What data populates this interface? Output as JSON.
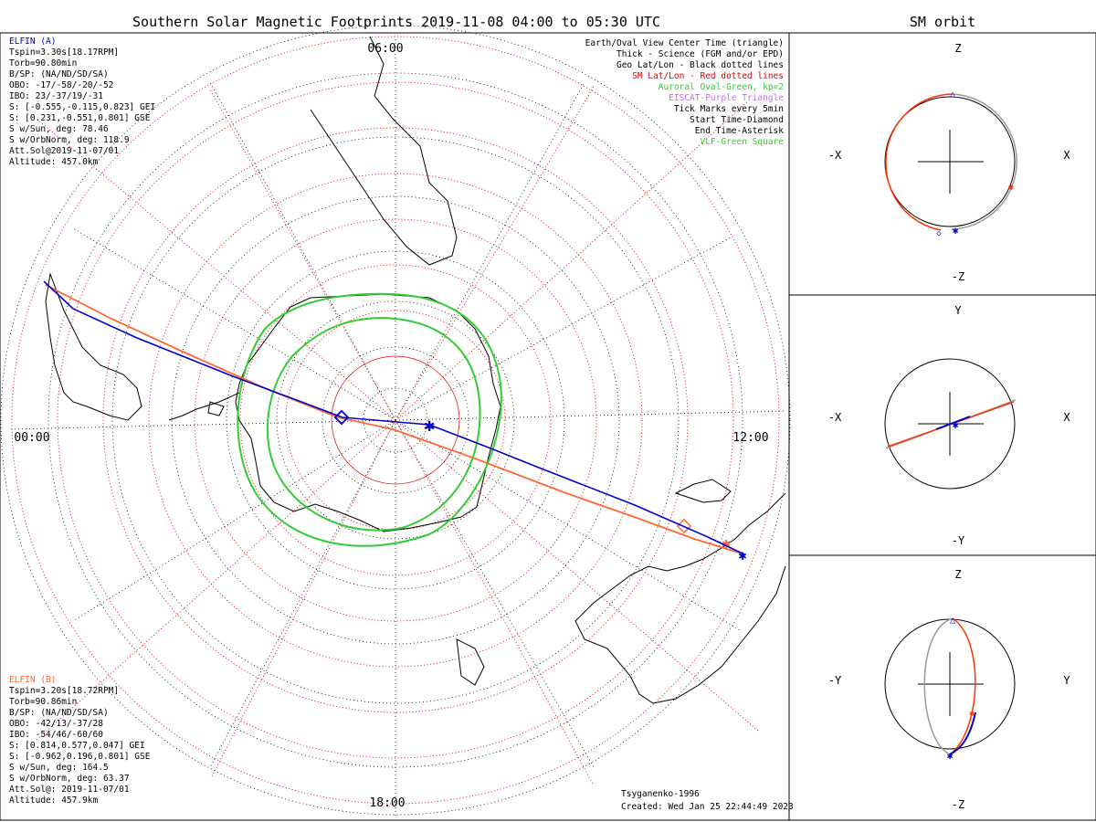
{
  "main_title": "Southern Solar Magnetic Footprints 2019-11-08 04:00 to 05:30 UTC",
  "orbit_title": "SM orbit",
  "hour_labels": {
    "top": "06:00",
    "left": "00:00",
    "right": "12:00",
    "bottom": "18:00"
  },
  "legend": [
    {
      "text": "Earth/Oval View Center Time (triangle)",
      "color": "#000000"
    },
    {
      "text": "Thick - Science (FGM and/or EPD)",
      "color": "#000000"
    },
    {
      "text": "Geo Lat/Lon - Black dotted lines",
      "color": "#000000"
    },
    {
      "text": "SM Lat/Lon - Red dotted lines",
      "color": "#e00000"
    },
    {
      "text": "Auroral Oval-Green, kp=2",
      "color": "#33cc33"
    },
    {
      "text": "EISCAT-Purple Triangle",
      "color": "#cc66ff"
    },
    {
      "text": "Tick Marks every 5min",
      "color": "#000000"
    },
    {
      "text": "Start Time-Diamond",
      "color": "#000000"
    },
    {
      "text": "End Time-Asterisk",
      "color": "#000000"
    },
    {
      "text": "VLF-Green Square",
      "color": "#33cc33"
    }
  ],
  "elfin_a": {
    "name": "ELFIN (A)",
    "color": "#0000cc",
    "lines": [
      "Tspin=3.30s[18.17RPM]",
      "Torb=90.80min",
      "B/SP: (NA/ND/SD/SA)",
      "OBO: -17/-58/-20/-52",
      "IBO: 23/-37/19/-31",
      "S: [-0.555,-0.115,0.823] GEI",
      "S: [0.231,-0.551,0.801] GSE",
      "S w/Sun, deg: 78.46",
      "S w/OrbNorm, deg: 118.9",
      "Att.Sol@2019-11-07/01",
      "Altitude: 457.0km"
    ]
  },
  "elfin_b": {
    "name": "ELFIN (B)",
    "color": "#ff6633",
    "lines": [
      "Tspin=3.20s[18.72RPM]",
      "Torb=90.86min",
      "B/SP: (NA/ND/SD/SA)",
      "OBO: -42/13/-37/28",
      "IBO: -54/46/-60/60",
      "S: [0.814,0.577,0.047] GEI",
      "S: [-0.962,0.196,0.801] GSE",
      "S w/Sun, deg: 164.5",
      "S w/OrbNorm, deg: 63.37",
      "Att.Sol@: 2019-11-07/01",
      "Altitude: 457.9km"
    ]
  },
  "footer": {
    "model": "Tsyganenko-1996",
    "created": "Created: Wed Jan 25 22:44:49 2023"
  },
  "orbit_panels": [
    {
      "top": "Z",
      "bottom": "-Z",
      "left": "-X",
      "right": "X"
    },
    {
      "top": "Y",
      "bottom": "-Y",
      "left": "-X",
      "right": "X"
    },
    {
      "top": "Z",
      "bottom": "-Z",
      "left": "-Y",
      "right": "Y"
    }
  ],
  "colors": {
    "elfin_a": "#0000cc",
    "elfin_b": "#ff6633",
    "oval": "#33cc33",
    "sm_grid": "#e00000",
    "geo_grid": "#000000"
  }
}
